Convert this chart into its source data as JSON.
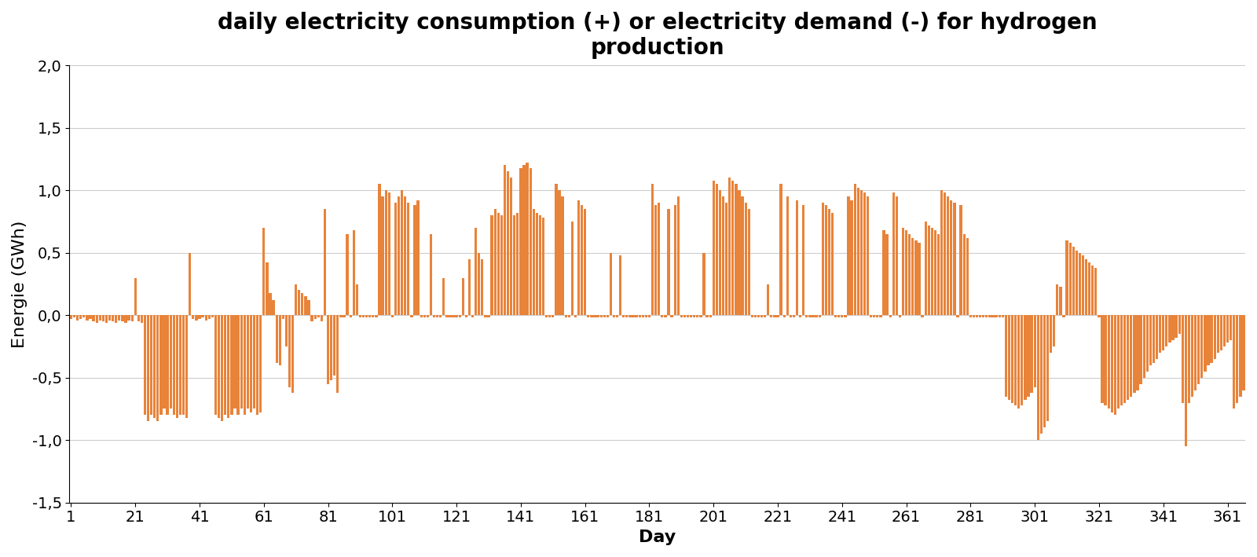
{
  "title": "daily electricity consumption (+) or electricity demand (-) for hydrogen\nproduction",
  "xlabel": "Day",
  "ylabel": "Energie (GWh)",
  "bar_color": "#E8833A",
  "ylim": [
    -1.5,
    2.0
  ],
  "yticks": [
    -1.5,
    -1.0,
    -0.5,
    0.0,
    0.5,
    1.0,
    1.5,
    2.0
  ],
  "ytick_labels": [
    "-1,5",
    "-1,0",
    "-0,5",
    "0,0",
    "0,5",
    "1,0",
    "1,5",
    "2,0"
  ],
  "xticks": [
    1,
    21,
    41,
    61,
    81,
    101,
    121,
    141,
    161,
    181,
    201,
    221,
    241,
    261,
    281,
    301,
    321,
    341,
    361
  ],
  "background_color": "#ffffff",
  "grid_color": "#cccccc",
  "title_fontsize": 20,
  "label_fontsize": 16,
  "tick_fontsize": 14,
  "values": [
    -0.03,
    -0.02,
    -0.04,
    -0.03,
    -0.02,
    -0.04,
    -0.03,
    -0.05,
    -0.06,
    -0.04,
    -0.05,
    -0.06,
    -0.04,
    -0.05,
    -0.06,
    -0.04,
    -0.05,
    -0.06,
    -0.04,
    -0.05,
    0.3,
    -0.05,
    -0.06,
    -0.8,
    -0.85,
    -0.8,
    -0.82,
    -0.85,
    -0.8,
    -0.75,
    -0.8,
    -0.75,
    -0.8,
    -0.82,
    -0.8,
    -0.8,
    -0.82,
    0.5,
    -0.03,
    -0.04,
    -0.03,
    -0.02,
    -0.04,
    -0.03,
    -0.02,
    -0.8,
    -0.82,
    -0.85,
    -0.8,
    -0.82,
    -0.8,
    -0.75,
    -0.8,
    -0.75,
    -0.8,
    -0.75,
    -0.78,
    -0.75,
    -0.8,
    -0.78,
    0.7,
    0.42,
    0.18,
    0.12,
    -0.38,
    -0.4,
    -0.03,
    -0.25,
    -0.58,
    -0.62,
    0.25,
    0.2,
    0.18,
    0.15,
    0.12,
    -0.05,
    -0.03,
    -0.02,
    -0.05,
    0.85,
    -0.55,
    -0.52,
    -0.48,
    -0.62,
    -0.02,
    -0.02,
    0.65,
    -0.02,
    0.68,
    0.25,
    -0.02,
    -0.02,
    -0.02,
    -0.02,
    -0.02,
    -0.02,
    1.05,
    0.95,
    1.0,
    0.98,
    -0.02,
    0.9,
    0.95,
    1.0,
    0.95,
    0.9,
    -0.02,
    0.88,
    0.92,
    -0.02,
    -0.02,
    -0.02,
    0.65,
    -0.02,
    -0.02,
    -0.02,
    0.3,
    -0.02,
    -0.02,
    -0.02,
    -0.02,
    -0.02,
    0.3,
    -0.02,
    0.45,
    -0.02,
    0.7,
    0.5,
    0.45,
    -0.02,
    -0.02,
    0.8,
    0.85,
    0.82,
    0.8,
    1.2,
    1.15,
    1.1,
    0.8,
    0.82,
    1.18,
    1.2,
    1.22,
    1.18,
    0.85,
    0.82,
    0.8,
    0.78,
    -0.02,
    -0.02,
    -0.02,
    1.05,
    1.0,
    0.95,
    -0.02,
    -0.02,
    0.75,
    -0.02,
    0.92,
    0.88,
    0.85,
    -0.02,
    -0.02,
    -0.02,
    -0.02,
    -0.02,
    -0.02,
    -0.02,
    0.5,
    -0.02,
    -0.02,
    0.48,
    -0.02,
    -0.02,
    -0.02,
    -0.02,
    -0.02,
    -0.02,
    -0.02,
    -0.02,
    -0.02,
    1.05,
    0.88,
    0.9,
    -0.02,
    -0.02,
    0.85,
    -0.02,
    0.88,
    0.95,
    -0.02,
    -0.02,
    -0.02,
    -0.02,
    -0.02,
    -0.02,
    -0.02,
    0.5,
    -0.02,
    -0.02,
    1.08,
    1.05,
    1.0,
    0.95,
    0.9,
    1.1,
    1.08,
    1.05,
    1.0,
    0.95,
    0.9,
    0.85,
    -0.02,
    -0.02,
    -0.02,
    -0.02,
    -0.02,
    0.25,
    -0.02,
    -0.02,
    -0.02,
    1.05,
    -0.02,
    0.95,
    -0.02,
    -0.02,
    0.92,
    -0.02,
    0.88,
    -0.02,
    -0.02,
    -0.02,
    -0.02,
    -0.02,
    0.9,
    0.88,
    0.85,
    0.82,
    -0.02,
    -0.02,
    -0.02,
    -0.02,
    0.95,
    0.92,
    1.05,
    1.02,
    1.0,
    0.98,
    0.95,
    -0.02,
    -0.02,
    -0.02,
    -0.02,
    0.68,
    0.65,
    -0.02,
    0.98,
    0.95,
    -0.02,
    0.7,
    0.68,
    0.65,
    0.62,
    0.6,
    0.58,
    -0.02,
    0.75,
    0.72,
    0.7,
    0.68,
    0.65,
    1.0,
    0.98,
    0.95,
    0.92,
    0.9,
    -0.02,
    0.88,
    0.65,
    0.62,
    -0.02,
    -0.02,
    -0.02,
    -0.02,
    -0.02,
    -0.02,
    -0.02,
    -0.02,
    -0.02,
    -0.02,
    -0.02,
    -0.65,
    -0.68,
    -0.7,
    -0.72,
    -0.75,
    -0.72,
    -0.68,
    -0.65,
    -0.62,
    -0.58,
    -1.0,
    -0.95,
    -0.9,
    -0.85,
    -0.3,
    -0.25,
    0.25,
    0.23,
    -0.02,
    0.6,
    0.58,
    0.55,
    0.52,
    0.5,
    0.48,
    0.45,
    0.42,
    0.4,
    0.38,
    -0.02,
    -0.7,
    -0.72,
    -0.75,
    -0.78,
    -0.8,
    -0.75,
    -0.72,
    -0.7,
    -0.68,
    -0.65,
    -0.62,
    -0.6,
    -0.55,
    -0.5,
    -0.45,
    -0.4,
    -0.38,
    -0.35,
    -0.3,
    -0.28,
    -0.25,
    -0.22,
    -0.2,
    -0.18,
    -0.15,
    -0.7,
    -1.05,
    -0.7,
    -0.65,
    -0.6,
    -0.55,
    -0.5,
    -0.45,
    -0.4,
    -0.38,
    -0.35,
    -0.3,
    -0.28,
    -0.25,
    -0.22,
    -0.2,
    -0.75,
    -0.7,
    -0.65,
    -0.6
  ]
}
